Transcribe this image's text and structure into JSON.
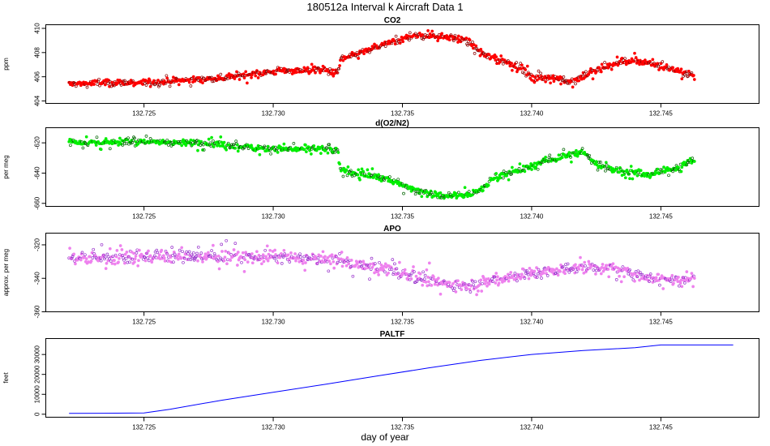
{
  "figure": {
    "title": "180512a   Interval k Aircraft Data 1",
    "xlabel": "day of year"
  },
  "chart_data": [
    {
      "type": "scatter",
      "title": "CO2",
      "xlabel": "",
      "ylabel": "ppm",
      "color": "#ff0000",
      "xlim": [
        132.7212,
        132.7488
      ],
      "ylim": [
        403.8,
        410.3
      ],
      "xticks": [
        132.725,
        132.73,
        132.735,
        132.74,
        132.745
      ],
      "xtick_labels": [
        "132.725",
        "132.730",
        "132.735",
        "132.740",
        "132.745"
      ],
      "yticks": [
        404,
        406,
        408,
        410
      ],
      "ytick_labels": [
        "404",
        "406",
        "408",
        "410"
      ],
      "series": [
        {
          "x": [
            132.7221,
            132.7235,
            132.725,
            132.7265,
            132.728,
            132.729,
            132.7305,
            132.7318,
            132.7325,
            132.7326,
            132.7334,
            132.7345,
            132.7355,
            132.7365,
            132.7375,
            132.738,
            132.7386,
            132.7396,
            132.74,
            132.741,
            132.7415,
            132.7425,
            132.7435,
            132.7445,
            132.7455,
            132.7463
          ],
          "y": [
            405.4,
            405.5,
            405.5,
            405.7,
            405.9,
            406.2,
            406.5,
            406.6,
            406.3,
            407.4,
            408.0,
            408.8,
            409.4,
            409.4,
            409.0,
            408.0,
            407.5,
            406.8,
            405.9,
            405.9,
            405.6,
            406.5,
            407.3,
            407.2,
            406.6,
            406.1
          ]
        }
      ]
    },
    {
      "type": "scatter",
      "title": "d(O2/N2)",
      "xlabel": "",
      "ylabel": "per meg",
      "color": "#00ee00",
      "xlim": [
        132.7212,
        132.7488
      ],
      "ylim": [
        -662,
        -610
      ],
      "xticks": [
        132.725,
        132.73,
        132.735,
        132.74,
        132.745
      ],
      "xtick_labels": [
        "132.725",
        "132.730",
        "132.735",
        "132.740",
        "132.745"
      ],
      "yticks": [
        -660,
        -640,
        -620
      ],
      "ytick_labels": [
        "-660",
        "-640",
        "-620"
      ],
      "series": [
        {
          "x": [
            132.7221,
            132.7235,
            132.725,
            132.7265,
            132.7275,
            132.729,
            132.7305,
            132.7318,
            132.7325,
            132.7326,
            132.7334,
            132.7345,
            132.7355,
            132.7365,
            132.7375,
            132.738,
            132.7386,
            132.7396,
            132.7405,
            132.7415,
            132.742,
            132.7425,
            132.7435,
            132.7445,
            132.7455,
            132.7463
          ],
          "y": [
            -619,
            -620,
            -619,
            -620,
            -620,
            -623,
            -624,
            -624,
            -626,
            -638,
            -641,
            -644,
            -651,
            -655,
            -654,
            -652,
            -642,
            -638,
            -632,
            -628,
            -626,
            -634,
            -639,
            -641,
            -637,
            -631
          ]
        }
      ]
    },
    {
      "type": "scatter",
      "title": "APO",
      "xlabel": "",
      "ylabel": "approx. per meg",
      "color": "#ee82ee",
      "xlim": [
        132.7212,
        132.7488
      ],
      "ylim": [
        -360,
        -313
      ],
      "xticks": [
        132.725,
        132.73,
        132.735,
        132.74,
        132.745
      ],
      "xtick_labels": [
        "132.725",
        "132.730",
        "132.735",
        "132.740",
        "132.745"
      ],
      "yticks": [
        -360,
        -340,
        -320
      ],
      "ytick_labels": [
        "-360",
        "-340",
        "-320"
      ],
      "series": [
        {
          "x": [
            132.7221,
            132.7235,
            132.725,
            132.7265,
            132.728,
            132.7295,
            132.731,
            132.7325,
            132.7335,
            132.7345,
            132.7355,
            132.7365,
            132.7375,
            132.7385,
            132.7395,
            132.7405,
            132.7415,
            132.7425,
            132.7435,
            132.7445,
            132.7455,
            132.7463
          ],
          "y": [
            -328,
            -328,
            -327,
            -327,
            -327,
            -327,
            -328,
            -329,
            -333,
            -335,
            -339,
            -343,
            -344,
            -341,
            -338,
            -336,
            -334,
            -333,
            -336,
            -339,
            -341,
            -339
          ]
        }
      ]
    },
    {
      "type": "line",
      "title": "PALTF",
      "xlabel": "day of year",
      "ylabel": "feet",
      "color": "#0000ff",
      "xlim": [
        132.7212,
        132.7488
      ],
      "ylim": [
        -1500,
        38000
      ],
      "xticks": [
        132.725,
        132.73,
        132.735,
        132.74,
        132.745
      ],
      "xtick_labels": [
        "132.725",
        "132.730",
        "132.735",
        "132.740",
        "132.745"
      ],
      "yticks": [
        0,
        10000,
        20000,
        30000
      ],
      "ytick_labels": [
        "0",
        "10000",
        "20000",
        "30000"
      ],
      "series": [
        {
          "x": [
            132.7221,
            132.725,
            132.726,
            132.728,
            132.73,
            132.732,
            132.734,
            132.736,
            132.738,
            132.74,
            132.742,
            132.744,
            132.745,
            132.7478
          ],
          "y": [
            400,
            600,
            2500,
            7000,
            11000,
            15000,
            19200,
            23200,
            27000,
            30000,
            32000,
            33400,
            34800,
            34800
          ]
        }
      ]
    }
  ]
}
